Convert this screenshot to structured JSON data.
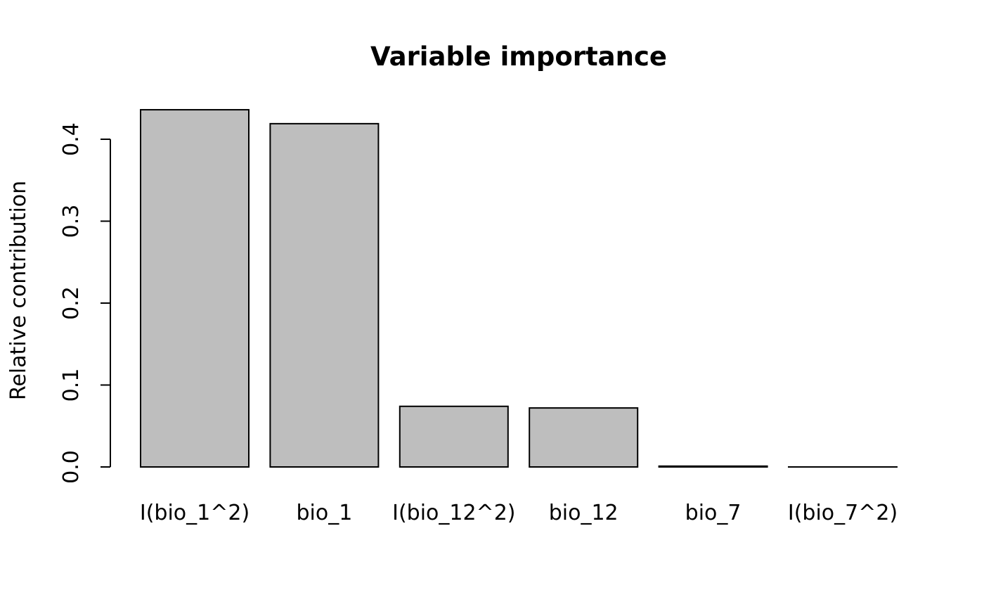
{
  "chart_data": {
    "type": "bar",
    "title": "Variable importance",
    "xlabel": "",
    "ylabel": "Relative contribution",
    "categories": [
      "I(bio_1^2)",
      "bio_1",
      "I(bio_12^2)",
      "bio_12",
      "bio_7",
      "I(bio_7^2)"
    ],
    "values": [
      0.436,
      0.419,
      0.074,
      0.072,
      0.001,
      0.0
    ],
    "yticks": [
      "0.0",
      "0.1",
      "0.2",
      "0.3",
      "0.4"
    ],
    "ylim": [
      0,
      0.45
    ],
    "grid": false,
    "legend": "none",
    "colors": {
      "bar_fill": "#bebebe",
      "bar_stroke": "#000000"
    }
  }
}
